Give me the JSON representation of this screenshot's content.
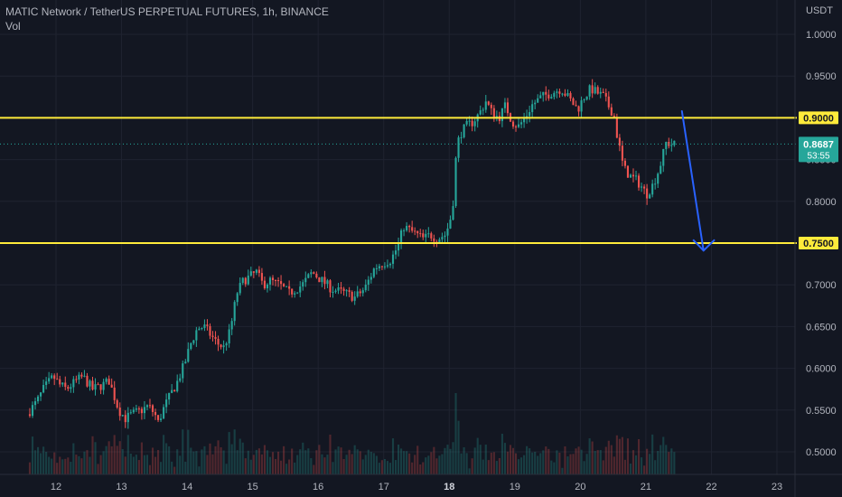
{
  "header": {
    "title": "MATIC Network / TetherUS PERPETUAL FUTURES, 1h, BINANCE",
    "indicator": "Vol"
  },
  "colors": {
    "background": "#131722",
    "grid": "#1f2330",
    "up": "#26a69a",
    "down": "#ef5350",
    "level_line": "#ffeb3b",
    "arrow": "#2962ff",
    "current_price": "#26a69a"
  },
  "chart_data": {
    "type": "candlestick",
    "title": "MATIC Network / TetherUS PERPETUAL FUTURES, 1h, BINANCE",
    "quote_currency": "USDT",
    "y_axis": {
      "min": 0.475,
      "max": 1.0125,
      "ticks": [
        "1.0000",
        "0.9500",
        "0.9000",
        "0.8500",
        "0.8000",
        "0.7500",
        "0.7000",
        "0.6500",
        "0.6000",
        "0.5500",
        "0.5000"
      ]
    },
    "x_axis": {
      "start_day": 11.6,
      "end_day": 23.6,
      "ticks": [
        {
          "day": 12,
          "label": "12"
        },
        {
          "day": 13,
          "label": "13"
        },
        {
          "day": 14,
          "label": "14"
        },
        {
          "day": 15,
          "label": "15"
        },
        {
          "day": 16,
          "label": "16"
        },
        {
          "day": 17,
          "label": "17"
        },
        {
          "day": 18,
          "label": "18",
          "bold": true
        },
        {
          "day": 19,
          "label": "19"
        },
        {
          "day": 20,
          "label": "20"
        },
        {
          "day": 21,
          "label": "21"
        },
        {
          "day": 22,
          "label": "22"
        },
        {
          "day": 23,
          "label": "23"
        }
      ]
    },
    "price_path": [
      [
        11.6,
        0.545
      ],
      [
        11.75,
        0.56
      ],
      [
        11.85,
        0.575
      ],
      [
        12.0,
        0.59
      ],
      [
        12.1,
        0.58
      ],
      [
        12.2,
        0.575
      ],
      [
        12.35,
        0.585
      ],
      [
        12.45,
        0.59
      ],
      [
        12.6,
        0.575
      ],
      [
        12.75,
        0.58
      ],
      [
        12.85,
        0.585
      ],
      [
        13.0,
        0.55
      ],
      [
        13.1,
        0.54
      ],
      [
        13.2,
        0.545
      ],
      [
        13.35,
        0.55
      ],
      [
        13.45,
        0.555
      ],
      [
        13.55,
        0.545
      ],
      [
        13.6,
        0.535
      ],
      [
        13.7,
        0.555
      ],
      [
        13.8,
        0.57
      ],
      [
        13.9,
        0.585
      ],
      [
        14.0,
        0.605
      ],
      [
        14.1,
        0.63
      ],
      [
        14.2,
        0.648
      ],
      [
        14.3,
        0.65
      ],
      [
        14.4,
        0.64
      ],
      [
        14.5,
        0.63
      ],
      [
        14.6,
        0.625
      ],
      [
        14.7,
        0.645
      ],
      [
        14.8,
        0.69
      ],
      [
        14.9,
        0.705
      ],
      [
        15.0,
        0.71
      ],
      [
        15.1,
        0.715
      ],
      [
        15.2,
        0.7
      ],
      [
        15.3,
        0.705
      ],
      [
        15.45,
        0.7
      ],
      [
        15.6,
        0.69
      ],
      [
        15.8,
        0.7
      ],
      [
        15.95,
        0.715
      ],
      [
        16.1,
        0.705
      ],
      [
        16.25,
        0.695
      ],
      [
        16.45,
        0.69
      ],
      [
        16.6,
        0.685
      ],
      [
        16.75,
        0.695
      ],
      [
        16.9,
        0.72
      ],
      [
        17.0,
        0.725
      ],
      [
        17.15,
        0.73
      ],
      [
        17.25,
        0.745
      ],
      [
        17.35,
        0.77
      ],
      [
        17.45,
        0.765
      ],
      [
        17.55,
        0.76
      ],
      [
        17.65,
        0.755
      ],
      [
        17.75,
        0.76
      ],
      [
        17.85,
        0.755
      ],
      [
        17.98,
        0.76
      ],
      [
        18.05,
        0.775
      ],
      [
        18.1,
        0.8
      ],
      [
        18.15,
        0.86
      ],
      [
        18.2,
        0.88
      ],
      [
        18.3,
        0.89
      ],
      [
        18.4,
        0.895
      ],
      [
        18.5,
        0.905
      ],
      [
        18.6,
        0.92
      ],
      [
        18.7,
        0.905
      ],
      [
        18.8,
        0.9
      ],
      [
        18.9,
        0.915
      ],
      [
        19.0,
        0.895
      ],
      [
        19.1,
        0.89
      ],
      [
        19.2,
        0.9
      ],
      [
        19.3,
        0.915
      ],
      [
        19.45,
        0.925
      ],
      [
        19.6,
        0.93
      ],
      [
        19.75,
        0.935
      ],
      [
        19.9,
        0.92
      ],
      [
        20.0,
        0.91
      ],
      [
        20.1,
        0.925
      ],
      [
        20.2,
        0.935
      ],
      [
        20.3,
        0.93
      ],
      [
        20.4,
        0.925
      ],
      [
        20.5,
        0.91
      ],
      [
        20.55,
        0.905
      ],
      [
        20.6,
        0.88
      ],
      [
        20.7,
        0.84
      ],
      [
        20.8,
        0.83
      ],
      [
        20.9,
        0.825
      ],
      [
        21.0,
        0.815
      ],
      [
        21.05,
        0.808
      ],
      [
        21.15,
        0.82
      ],
      [
        21.25,
        0.84
      ],
      [
        21.35,
        0.87
      ],
      [
        21.45,
        0.868
      ]
    ],
    "levels": [
      {
        "price": 0.9,
        "label": "0.9000"
      },
      {
        "price": 0.75,
        "label": "0.7500"
      }
    ],
    "current_price": {
      "price": 0.8687,
      "label": "0.8687",
      "countdown": "53:55"
    },
    "projection": {
      "start": {
        "day": 21.55,
        "price": 0.908
      },
      "end": {
        "day": 21.88,
        "price": 0.741
      },
      "head_left": {
        "day": 21.72,
        "price": 0.754
      },
      "head_right": {
        "day": 22.05,
        "price": 0.754
      }
    }
  }
}
